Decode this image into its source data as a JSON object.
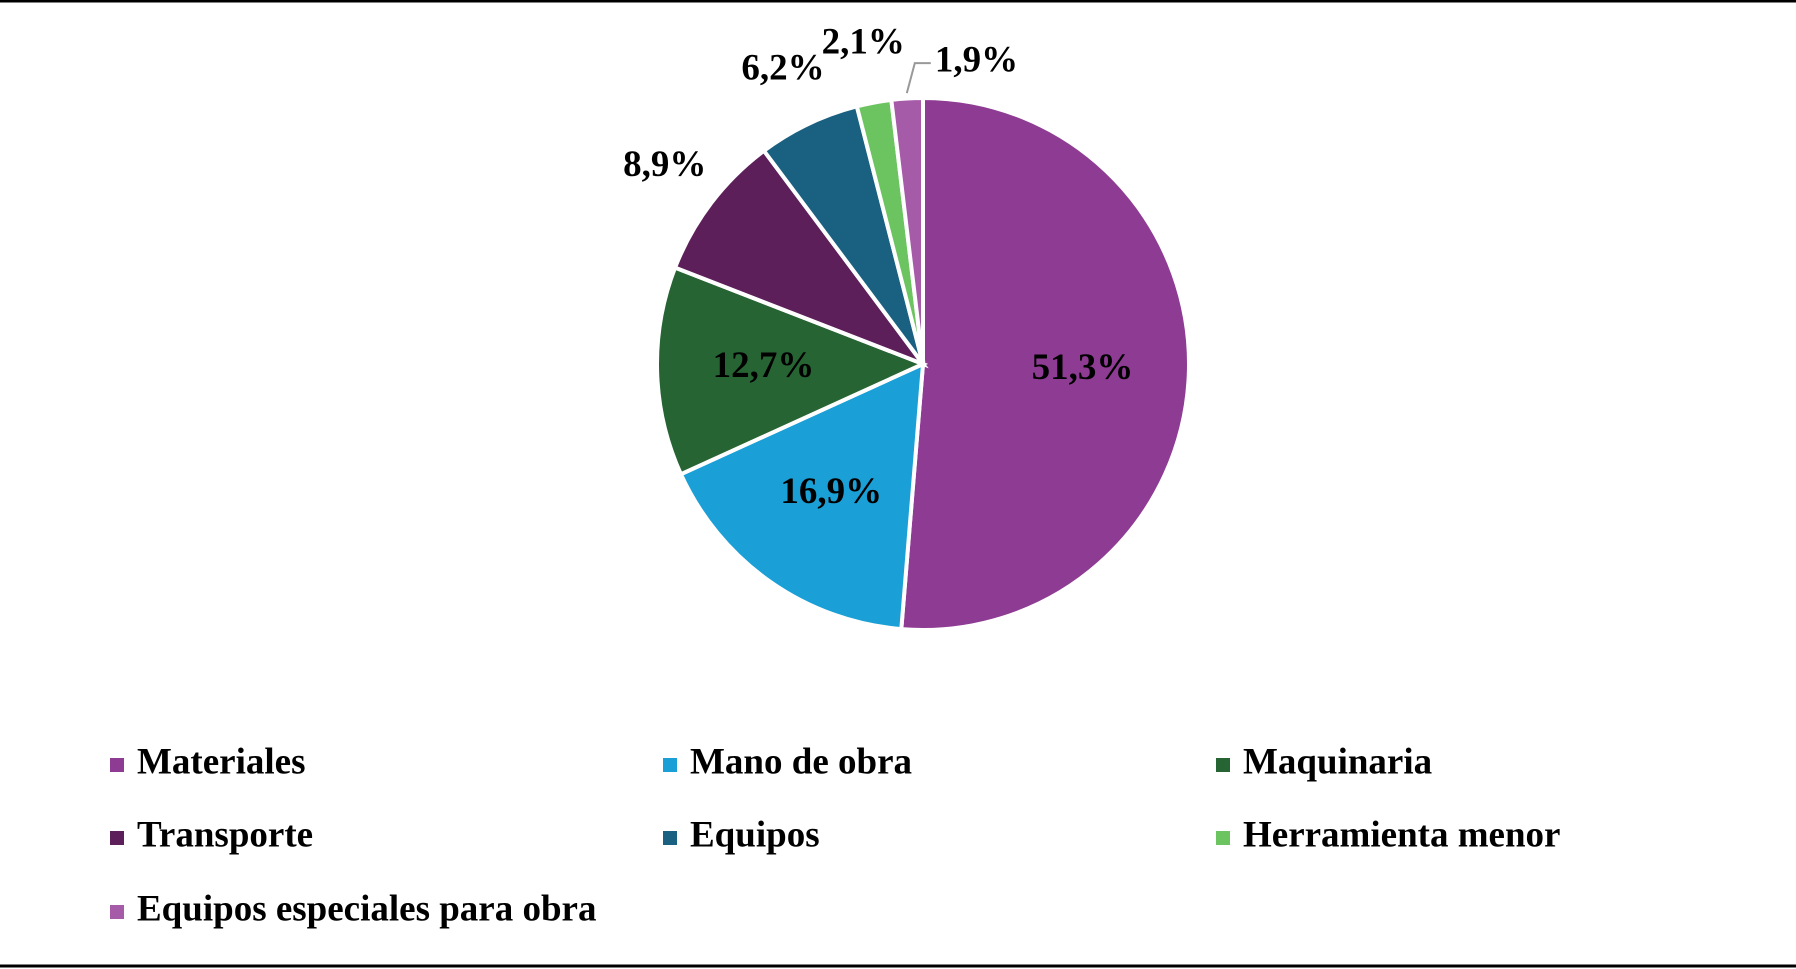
{
  "chart_data": {
    "type": "pie",
    "categories": [
      "Materiales",
      "Mano de obra",
      "Maquinaria",
      "Transporte",
      "Equipos",
      "Herramienta menor",
      "Equipos especiales para obra"
    ],
    "values": [
      51.3,
      16.9,
      12.7,
      8.9,
      6.2,
      2.1,
      1.9
    ],
    "value_labels": [
      "51,3%",
      "16,9%",
      "12,7%",
      "8,9%",
      "6,2%",
      "2,1%",
      "1,9%"
    ],
    "colors": [
      "#8e3b93",
      "#1a9fd6",
      "#276433",
      "#5c1f5a",
      "#1a6080",
      "#6cc461",
      "#a65ba8"
    ],
    "legend": "bottom"
  }
}
